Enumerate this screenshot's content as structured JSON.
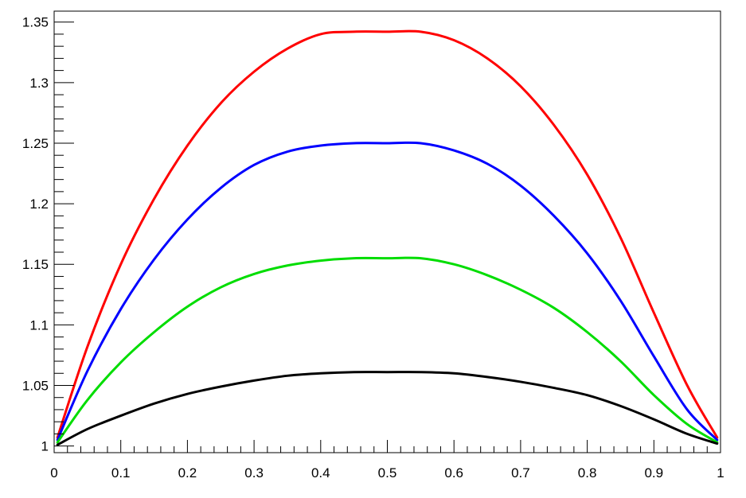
{
  "chart_data": {
    "type": "line",
    "title": "",
    "xlabel": "",
    "ylabel": "",
    "xlim": [
      0,
      1
    ],
    "ylim": [
      0.9945,
      1.359
    ],
    "grid": false,
    "legend": "none",
    "x_ticks": [
      {
        "value": 0,
        "label": "0"
      },
      {
        "value": 0.1,
        "label": "0.1"
      },
      {
        "value": 0.2,
        "label": "0.2"
      },
      {
        "value": 0.3,
        "label": "0.3"
      },
      {
        "value": 0.4,
        "label": "0.4"
      },
      {
        "value": 0.5,
        "label": "0.5"
      },
      {
        "value": 0.6,
        "label": "0.6"
      },
      {
        "value": 0.7,
        "label": "0.7"
      },
      {
        "value": 0.8,
        "label": "0.8"
      },
      {
        "value": 0.9,
        "label": "0.9"
      },
      {
        "value": 1,
        "label": "1"
      }
    ],
    "y_ticks": [
      {
        "value": 1,
        "label": "1"
      },
      {
        "value": 1.05,
        "label": "1.05"
      },
      {
        "value": 1.1,
        "label": "1.1"
      },
      {
        "value": 1.15,
        "label": "1.15"
      },
      {
        "value": 1.2,
        "label": "1.2"
      },
      {
        "value": 1.25,
        "label": "1.25"
      },
      {
        "value": 1.3,
        "label": "1.3"
      },
      {
        "value": 1.35,
        "label": "1.35"
      }
    ],
    "x": [
      0.005,
      0.05,
      0.1,
      0.15,
      0.2,
      0.25,
      0.3,
      0.35,
      0.4,
      0.45,
      0.5,
      0.55,
      0.6,
      0.65,
      0.7,
      0.75,
      0.8,
      0.85,
      0.9,
      0.95,
      0.995
    ],
    "series": [
      {
        "color": "#ff0000",
        "values": [
          1.007,
          1.082,
          1.15,
          1.204,
          1.248,
          1.283,
          1.309,
          1.328,
          1.34,
          1.342,
          1.342,
          1.342,
          1.335,
          1.32,
          1.297,
          1.265,
          1.224,
          1.172,
          1.11,
          1.05,
          1.007
        ]
      },
      {
        "color": "#0000ff",
        "values": [
          1.005,
          1.062,
          1.113,
          1.154,
          1.187,
          1.213,
          1.232,
          1.243,
          1.248,
          1.25,
          1.25,
          1.25,
          1.244,
          1.233,
          1.215,
          1.19,
          1.159,
          1.12,
          1.074,
          1.03,
          1.005
        ]
      },
      {
        "color": "#00dd00",
        "values": [
          1.003,
          1.038,
          1.069,
          1.094,
          1.115,
          1.131,
          1.142,
          1.149,
          1.153,
          1.155,
          1.155,
          1.155,
          1.15,
          1.141,
          1.129,
          1.114,
          1.094,
          1.07,
          1.042,
          1.018,
          1.003
        ]
      },
      {
        "color": "#000000",
        "values": [
          1.001,
          1.014,
          1.025,
          1.035,
          1.043,
          1.049,
          1.054,
          1.058,
          1.06,
          1.061,
          1.061,
          1.061,
          1.06,
          1.057,
          1.053,
          1.048,
          1.042,
          1.033,
          1.022,
          1.01,
          1.002
        ]
      }
    ]
  }
}
